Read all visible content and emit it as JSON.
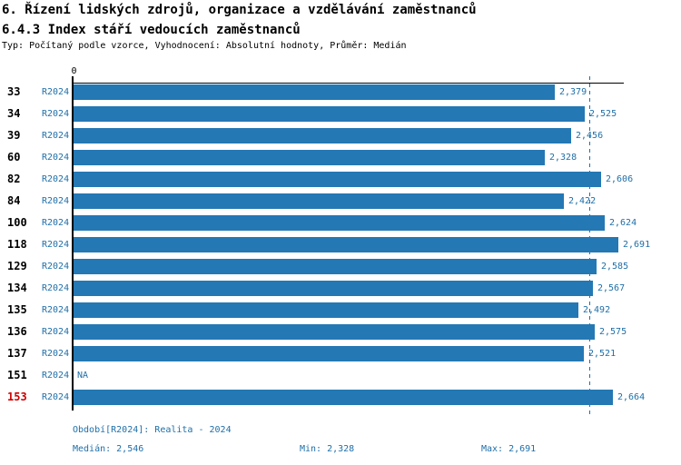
{
  "header": {
    "title": "6. Řízení lidských zdrojů, organizace a vzdělávání zaměstnanců",
    "subtitle": "6.4.3 Index stáří vedoucích zaměstnanců",
    "meta": "Typ: Počítaný podle vzorce, Vyhodnocení: Absolutní hodnoty, Průměr: Medián"
  },
  "chart_data": {
    "type": "bar",
    "orientation": "horizontal",
    "title": "6.4.3 Index stáří vedoucích zaměstnanců",
    "xlabel": "",
    "ylabel": "",
    "xlim": [
      0,
      2.691
    ],
    "axis": {
      "zero_label": "0"
    },
    "median": 2.546,
    "min": 2.328,
    "max": 2.691,
    "rows": [
      {
        "org": "33",
        "period": "R2024",
        "value": 2.379,
        "display": "2,379",
        "highlight": false
      },
      {
        "org": "34",
        "period": "R2024",
        "value": 2.525,
        "display": "2,525",
        "highlight": false
      },
      {
        "org": "39",
        "period": "R2024",
        "value": 2.456,
        "display": "2,456",
        "highlight": false
      },
      {
        "org": "60",
        "period": "R2024",
        "value": 2.328,
        "display": "2,328",
        "highlight": false
      },
      {
        "org": "82",
        "period": "R2024",
        "value": 2.606,
        "display": "2,606",
        "highlight": false
      },
      {
        "org": "84",
        "period": "R2024",
        "value": 2.422,
        "display": "2,422",
        "highlight": false
      },
      {
        "org": "100",
        "period": "R2024",
        "value": 2.624,
        "display": "2,624",
        "highlight": false
      },
      {
        "org": "118",
        "period": "R2024",
        "value": 2.691,
        "display": "2,691",
        "highlight": false
      },
      {
        "org": "129",
        "period": "R2024",
        "value": 2.585,
        "display": "2,585",
        "highlight": false
      },
      {
        "org": "134",
        "period": "R2024",
        "value": 2.567,
        "display": "2,567",
        "highlight": false
      },
      {
        "org": "135",
        "period": "R2024",
        "value": 2.492,
        "display": "2,492",
        "highlight": false
      },
      {
        "org": "136",
        "period": "R2024",
        "value": 2.575,
        "display": "2,575",
        "highlight": false
      },
      {
        "org": "137",
        "period": "R2024",
        "value": 2.521,
        "display": "2,521",
        "highlight": false
      },
      {
        "org": "151",
        "period": "R2024",
        "value": null,
        "display": "NA",
        "highlight": false
      },
      {
        "org": "153",
        "period": "R2024",
        "value": 2.664,
        "display": "2,664",
        "highlight": true
      }
    ],
    "colors": {
      "bar": "#2478b4",
      "blue_text": "#1f6fa8",
      "highlight_red": "#cc0000",
      "axis": "#000000"
    }
  },
  "footer": {
    "period_line": "Období[R2024]: Realita - 2024",
    "median_label": "Medián: 2,546",
    "min_label": "Min: 2,328",
    "max_label": "Max: 2,691"
  }
}
